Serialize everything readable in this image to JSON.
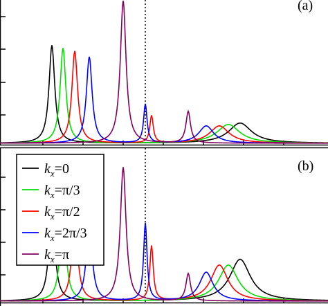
{
  "chart_data": [
    {
      "type": "line",
      "panel_label": "(a)",
      "xlim": [
        0,
        474
      ],
      "ylim": [
        0,
        1
      ],
      "vline_x": 210,
      "series": [
        {
          "name": "k_x=0",
          "color": "#000000",
          "peaks": [
            {
              "x": 75,
              "h": 0.68,
              "w": 5
            },
            {
              "x": 347,
              "h": 0.14,
              "w": 20
            }
          ]
        },
        {
          "name": "k_x=π/3",
          "color": "#00e000",
          "peaks": [
            {
              "x": 91,
              "h": 0.66,
              "w": 5
            },
            {
              "x": 330,
              "h": 0.13,
              "w": 20
            }
          ]
        },
        {
          "name": "k_x=π/2",
          "color": "#ff0000",
          "peaks": [
            {
              "x": 108,
              "h": 0.64,
              "w": 5
            },
            {
              "x": 219,
              "h": 0.19,
              "w": 3
            },
            {
              "x": 317,
              "h": 0.12,
              "w": 17
            }
          ]
        },
        {
          "name": "k_x=2π/3",
          "color": "#0000ff",
          "peaks": [
            {
              "x": 129,
              "h": 0.6,
              "w": 5
            },
            {
              "x": 210,
              "h": 0.27,
              "w": 3
            },
            {
              "x": 298,
              "h": 0.12,
              "w": 13
            }
          ]
        },
        {
          "name": "k_x=π",
          "color": "#800060",
          "peaks": [
            {
              "x": 178,
              "h": 0.99,
              "w": 5
            },
            {
              "x": 272,
              "h": 0.22,
              "w": 4
            }
          ]
        }
      ]
    },
    {
      "type": "line",
      "panel_label": "(b)",
      "xlim": [
        0,
        474
      ],
      "ylim": [
        0,
        1
      ],
      "vline_x": 210,
      "series": [
        {
          "name": "k_x=0",
          "color": "#000000",
          "peaks": [
            {
              "x": 75,
              "h": 0.66,
              "w": 5
            },
            {
              "x": 347,
              "h": 0.29,
              "w": 18
            }
          ]
        },
        {
          "name": "k_x=π/3",
          "color": "#00e000",
          "peaks": [
            {
              "x": 91,
              "h": 0.62,
              "w": 5
            },
            {
              "x": 330,
              "h": 0.25,
              "w": 17
            }
          ]
        },
        {
          "name": "k_x=π/2",
          "color": "#ff0000",
          "peaks": [
            {
              "x": 108,
              "h": 0.58,
              "w": 5
            },
            {
              "x": 219,
              "h": 0.38,
              "w": 3
            },
            {
              "x": 317,
              "h": 0.25,
              "w": 15
            }
          ]
        },
        {
          "name": "k_x=2π/3",
          "color": "#0000ff",
          "peaks": [
            {
              "x": 129,
              "h": 0.55,
              "w": 5
            },
            {
              "x": 210,
              "h": 0.54,
              "w": 3
            },
            {
              "x": 298,
              "h": 0.2,
              "w": 12
            }
          ]
        },
        {
          "name": "k_x=π",
          "color": "#800060",
          "peaks": [
            {
              "x": 178,
              "h": 0.93,
              "w": 5
            },
            {
              "x": 272,
              "h": 0.19,
              "w": 4
            }
          ]
        }
      ]
    }
  ],
  "legend": [
    {
      "k": "k",
      "sub": "x",
      "eq": "=0",
      "color": "#000000"
    },
    {
      "k": "k",
      "sub": "x",
      "eq": "=π/3",
      "color": "#00e000"
    },
    {
      "k": "k",
      "sub": "x",
      "eq": "=π/2",
      "color": "#ff0000"
    },
    {
      "k": "k",
      "sub": "x",
      "eq": "=2π/3",
      "color": "#0000ff"
    },
    {
      "k": "k",
      "sub": "x",
      "eq": "=π",
      "color": "#800060"
    }
  ]
}
